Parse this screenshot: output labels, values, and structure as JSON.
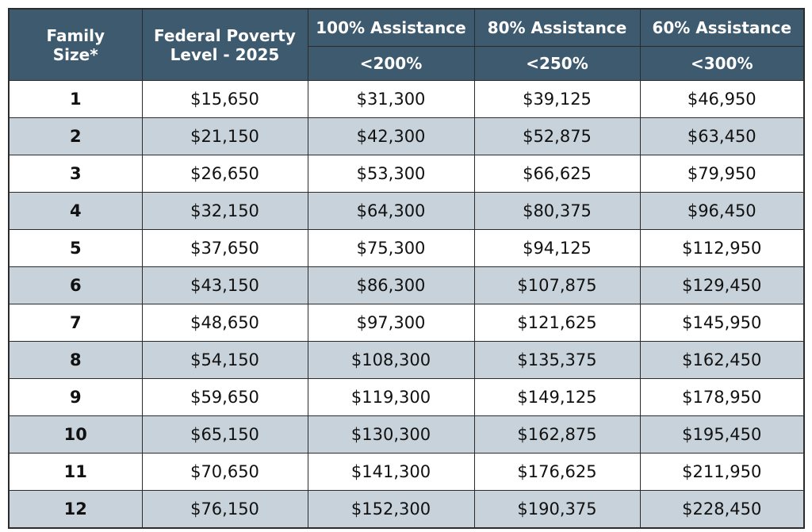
{
  "table": {
    "header": {
      "family_size": "Family Size*",
      "fpl": "Federal Poverty Level - 2025",
      "assistance": [
        {
          "label": "100% Assistance",
          "threshold": "<200%"
        },
        {
          "label": "80% Assistance",
          "threshold": "<250%"
        },
        {
          "label": "60% Assistance",
          "threshold": "<300%"
        }
      ]
    },
    "rows": [
      [
        "1",
        "$15,650",
        "$31,300",
        "$39,125",
        "$46,950"
      ],
      [
        "2",
        "$21,150",
        "$42,300",
        "$52,875",
        "$63,450"
      ],
      [
        "3",
        "$26,650",
        "$53,300",
        "$66,625",
        "$79,950"
      ],
      [
        "4",
        "$32,150",
        "$64,300",
        "$80,375",
        "$96,450"
      ],
      [
        "5",
        "$37,650",
        "$75,300",
        "$94,125",
        "$112,950"
      ],
      [
        "6",
        "$43,150",
        "$86,300",
        "$107,875",
        "$129,450"
      ],
      [
        "7",
        "$48,650",
        "$97,300",
        "$121,625",
        "$145,950"
      ],
      [
        "8",
        "$54,150",
        "$108,300",
        "$135,375",
        "$162,450"
      ],
      [
        "9",
        "$59,650",
        "$119,300",
        "$149,125",
        "$178,950"
      ],
      [
        "10",
        "$65,150",
        "$130,300",
        "$162,875",
        "$195,450"
      ],
      [
        "11",
        "$70,650",
        "$141,300",
        "$176,625",
        "$211,950"
      ],
      [
        "12",
        "$76,150",
        "$152,300",
        "$190,375",
        "$228,450"
      ]
    ]
  }
}
